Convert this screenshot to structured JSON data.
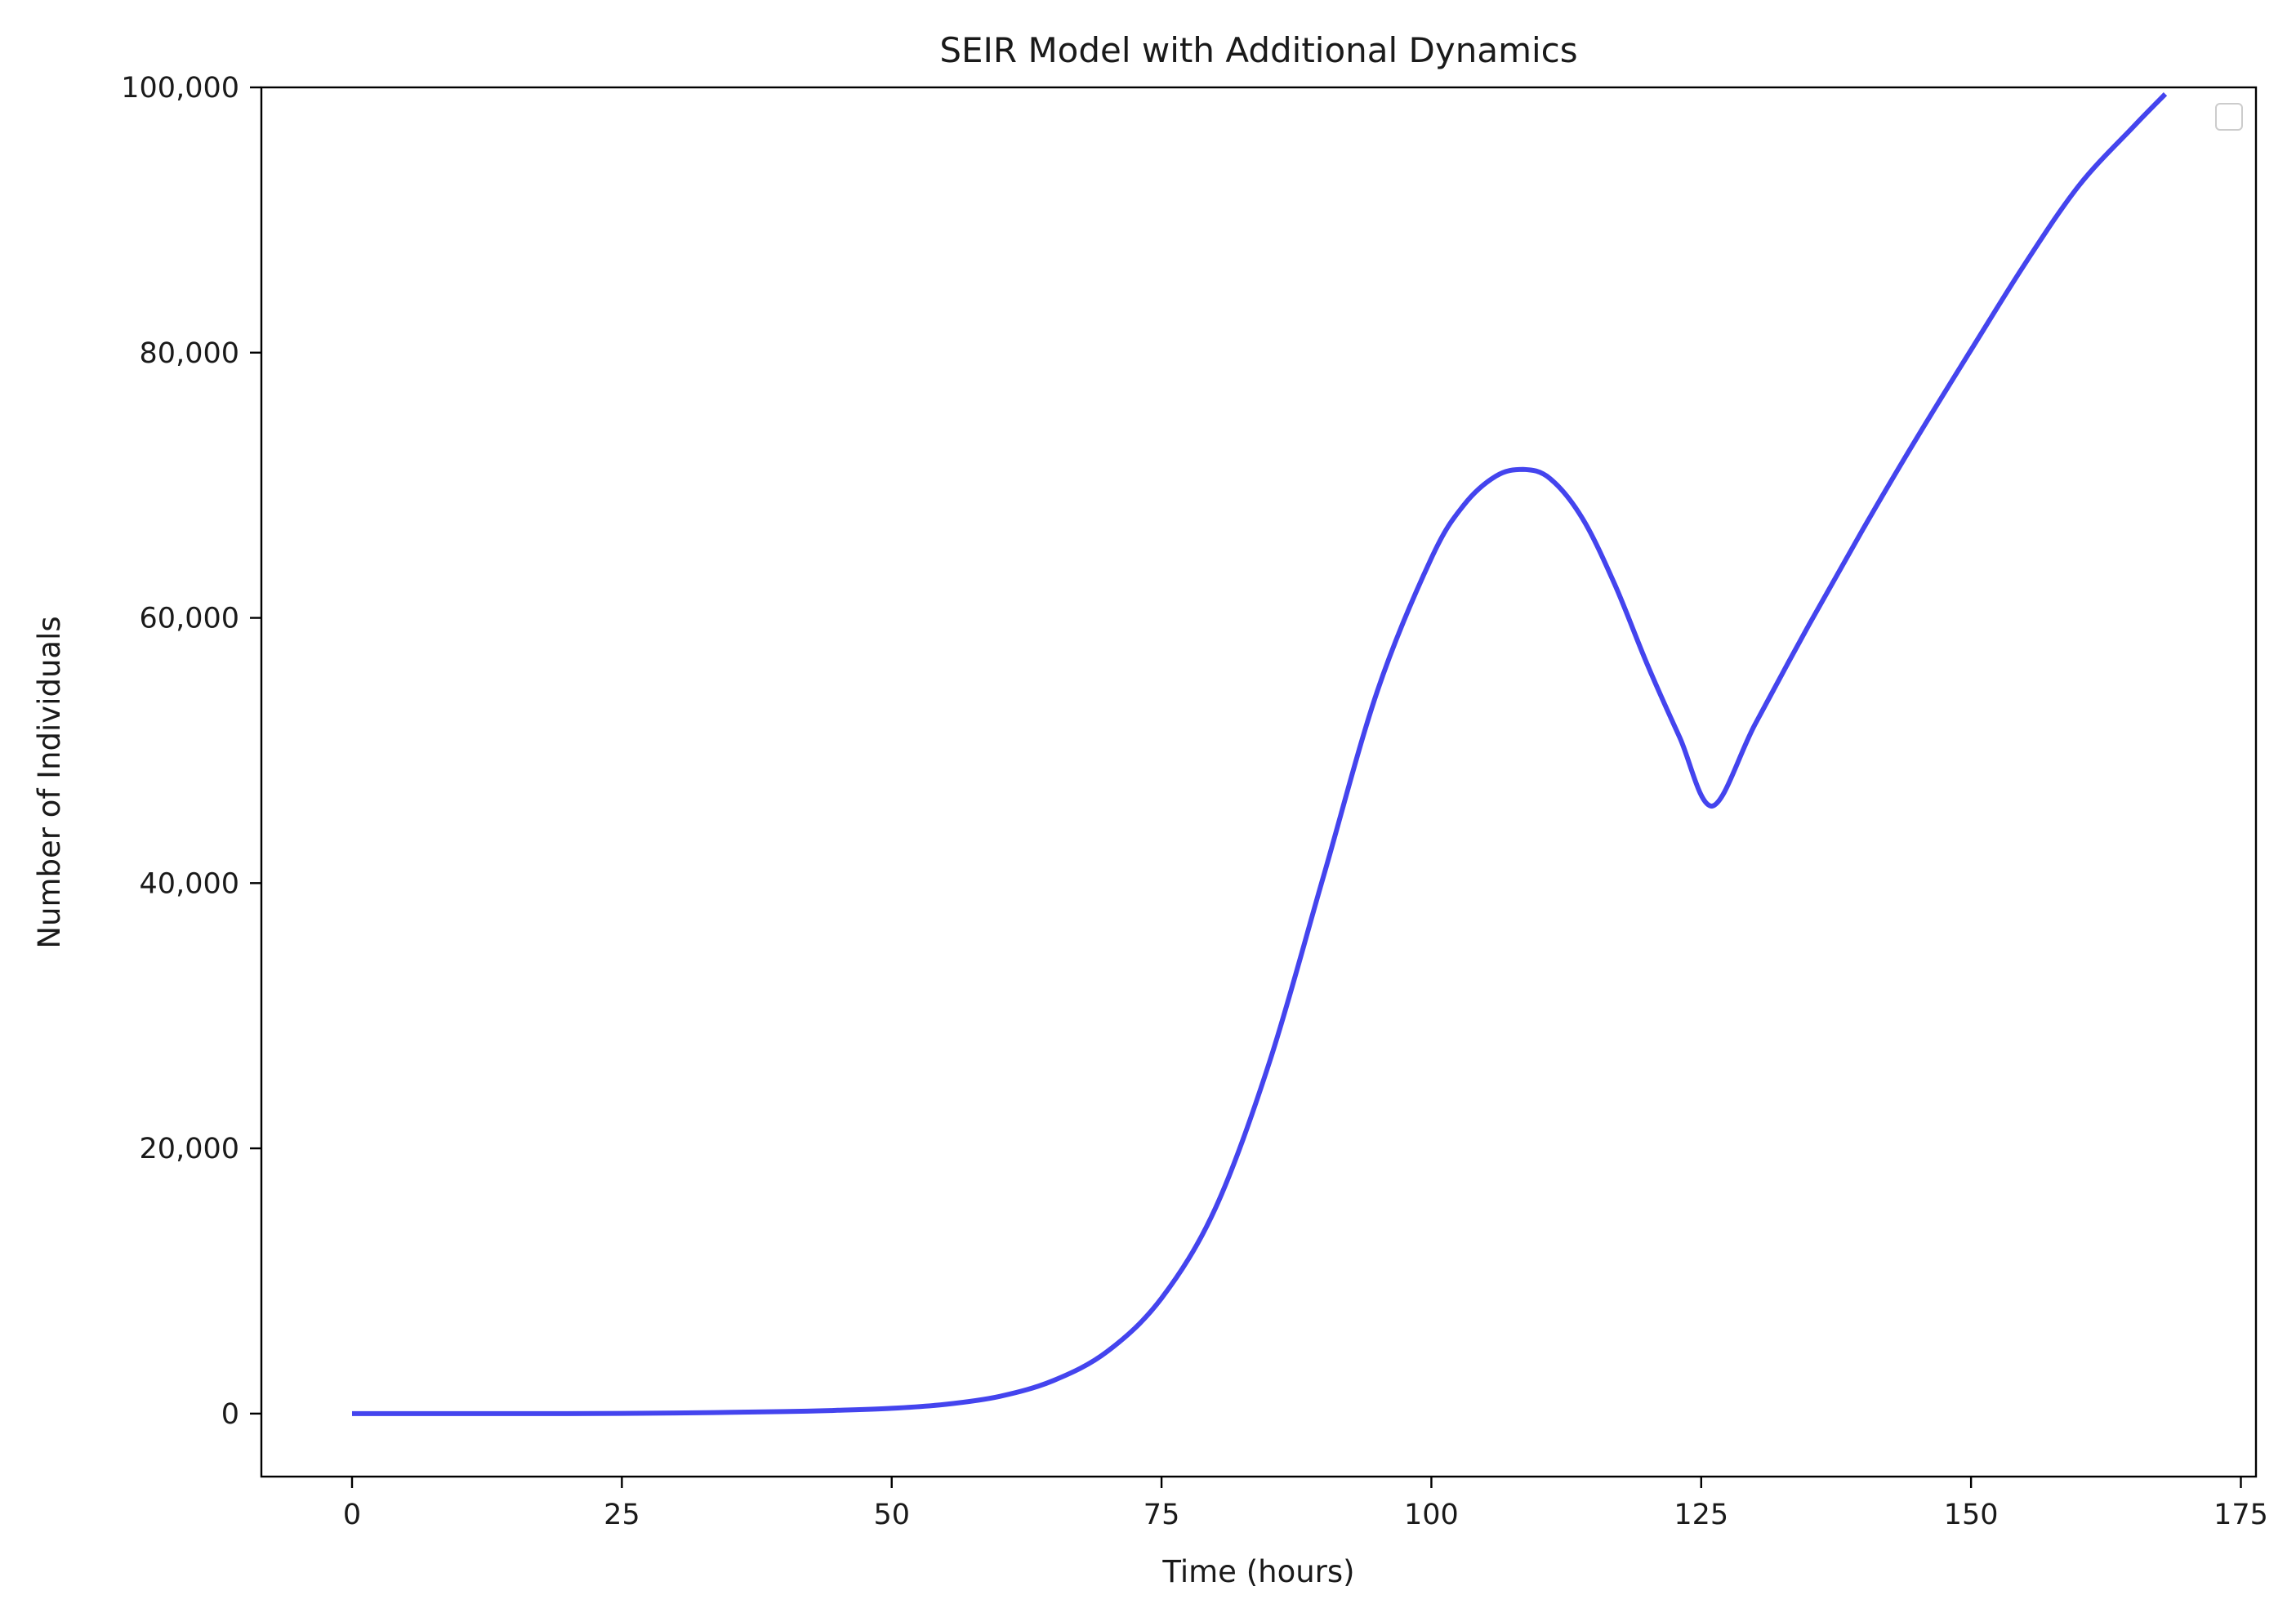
{
  "chart_data": {
    "type": "line",
    "title": "SEIR Model with Additional Dynamics",
    "xlabel": "Time (hours)",
    "ylabel": "Number of Individuals",
    "xlim": [
      -8.4,
      176.4
    ],
    "ylim": [
      -4750,
      100000
    ],
    "xticks": [
      0,
      25,
      50,
      75,
      100,
      125,
      150,
      175
    ],
    "xtick_labels": [
      "0",
      "25",
      "50",
      "75",
      "100",
      "125",
      "150",
      "175"
    ],
    "yticks": [
      0,
      20000,
      40000,
      60000,
      80000,
      100000
    ],
    "ytick_labels": [
      "0",
      "20,000",
      "40,000",
      "60,000",
      "80,000",
      "100,000"
    ],
    "grid": false,
    "legend": {
      "placement": "top-right",
      "entries": []
    },
    "series": [
      {
        "color": "#4444ee",
        "x": [
          0,
          10,
          20,
          30,
          40,
          45,
          50,
          55,
          60,
          65,
          70,
          75,
          80,
          85,
          90,
          95,
          100,
          103,
          106,
          108.5,
          111,
          114,
          117,
          120,
          123,
          126,
          130,
          135,
          140,
          145,
          150,
          155,
          160,
          165,
          168
        ],
        "y": [
          0,
          0,
          0,
          50,
          150,
          250,
          400,
          700,
          1300,
          2500,
          4700,
          8700,
          15500,
          26500,
          40500,
          54500,
          64500,
          68500,
          70700,
          71200,
          70500,
          67500,
          62500,
          56500,
          51000,
          45800,
          52000,
          59500,
          66700,
          73600,
          80200,
          86700,
          92600,
          97000,
          99500
        ]
      }
    ]
  }
}
